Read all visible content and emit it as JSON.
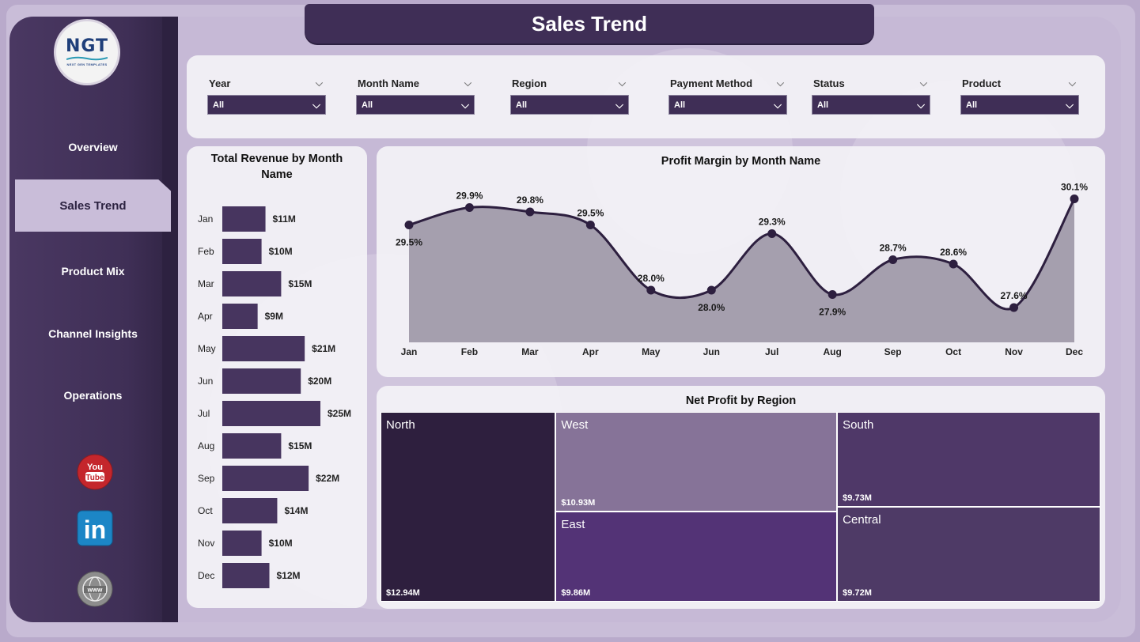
{
  "title": "Sales Trend",
  "logo": {
    "text": "NGT",
    "subtext": "NEXT GEN TEMPLATES"
  },
  "nav": [
    {
      "label": "Overview",
      "active": false
    },
    {
      "label": "Sales Trend",
      "active": true
    },
    {
      "label": "Product Mix",
      "active": false
    },
    {
      "label": "Channel Insights",
      "active": false
    },
    {
      "label": "Operations",
      "active": false
    }
  ],
  "social": [
    {
      "icon": "youtube-icon",
      "text_top": "You",
      "text_bottom": "Tube"
    },
    {
      "icon": "linkedin-icon",
      "text": "in"
    },
    {
      "icon": "globe-icon",
      "text": "www"
    }
  ],
  "filters": [
    {
      "label": "Year",
      "value": "All"
    },
    {
      "label": "Month Name",
      "value": "All"
    },
    {
      "label": "Region",
      "value": "All"
    },
    {
      "label": "Payment Method",
      "value": "All"
    },
    {
      "label": "Status",
      "value": "All"
    },
    {
      "label": "Product",
      "value": "All"
    }
  ],
  "colors": {
    "accent": "#3f2e56",
    "bar": "#47355f",
    "area_fill": "#a59fae",
    "line": "#2d1f3f"
  },
  "chart_data": [
    {
      "type": "bar",
      "orientation": "horizontal",
      "title": "Total Revenue by Month Name",
      "categories": [
        "Jan",
        "Feb",
        "Mar",
        "Apr",
        "May",
        "Jun",
        "Jul",
        "Aug",
        "Sep",
        "Oct",
        "Nov",
        "Dec"
      ],
      "values": [
        11,
        10,
        15,
        9,
        21,
        20,
        25,
        15,
        22,
        14,
        10,
        12
      ],
      "data_labels": [
        "$11M",
        "$10M",
        "$15M",
        "$9M",
        "$21M",
        "$20M",
        "$25M",
        "$15M",
        "$22M",
        "$14M",
        "$10M",
        "$12M"
      ],
      "unit": "$M"
    },
    {
      "type": "area",
      "title": "Profit Margin by Month Name",
      "categories": [
        "Jan",
        "Feb",
        "Mar",
        "Apr",
        "May",
        "Jun",
        "Jul",
        "Aug",
        "Sep",
        "Oct",
        "Nov",
        "Dec"
      ],
      "values": [
        29.5,
        29.9,
        29.8,
        29.5,
        28.0,
        28.0,
        29.3,
        27.9,
        28.7,
        28.6,
        27.6,
        30.1
      ],
      "data_labels": [
        "29.5%",
        "29.9%",
        "29.8%",
        "29.5%",
        "28.0%",
        "28.0%",
        "29.3%",
        "27.9%",
        "28.7%",
        "28.6%",
        "27.6%",
        "30.1%"
      ],
      "label_position": [
        "below",
        "above",
        "above",
        "above",
        "above",
        "below",
        "above",
        "below",
        "above",
        "above",
        "above",
        "above"
      ],
      "ylim": [
        26.8,
        30.4
      ],
      "grid": false,
      "smooth": true
    },
    {
      "type": "treemap",
      "title": "Net Profit by Region",
      "items": [
        {
          "name": "North",
          "value": 12.94,
          "label": "$12.94M",
          "color": "#2e1f3e"
        },
        {
          "name": "West",
          "value": 10.93,
          "label": "$10.93M",
          "color": "#867398"
        },
        {
          "name": "East",
          "value": 9.86,
          "label": "$9.86M",
          "color": "#533376"
        },
        {
          "name": "South",
          "value": 9.73,
          "label": "$9.73M",
          "color": "#4f3868"
        },
        {
          "name": "Central",
          "value": 9.72,
          "label": "$9.72M",
          "color": "#4e3a66"
        }
      ]
    }
  ]
}
